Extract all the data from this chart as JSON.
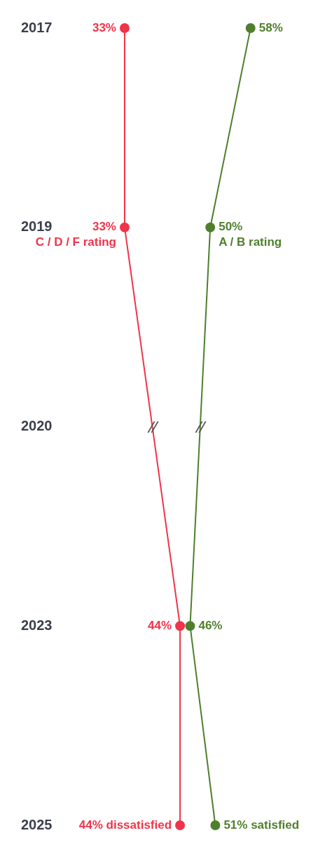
{
  "chart_data": {
    "type": "line",
    "orientation": "horizontal",
    "categories": [
      "2017",
      "2019",
      "2020",
      "2023",
      "2025"
    ],
    "series": [
      {
        "name": "A / B rating",
        "color": "#4f7f2c",
        "values": [
          58,
          50,
          null,
          46,
          51
        ],
        "value_labels": [
          "58%",
          "50%",
          null,
          "46%",
          "51% satisfied"
        ]
      },
      {
        "name": "C / D / F rating",
        "color": "#f0344a",
        "values": [
          33,
          33,
          null,
          44,
          44
        ],
        "value_labels": [
          "33%",
          "33%",
          null,
          "44%",
          "44% dissatisfied"
        ]
      }
    ],
    "tick_labels": "y",
    "grid": false,
    "legend": false,
    "marker": "circle"
  }
}
